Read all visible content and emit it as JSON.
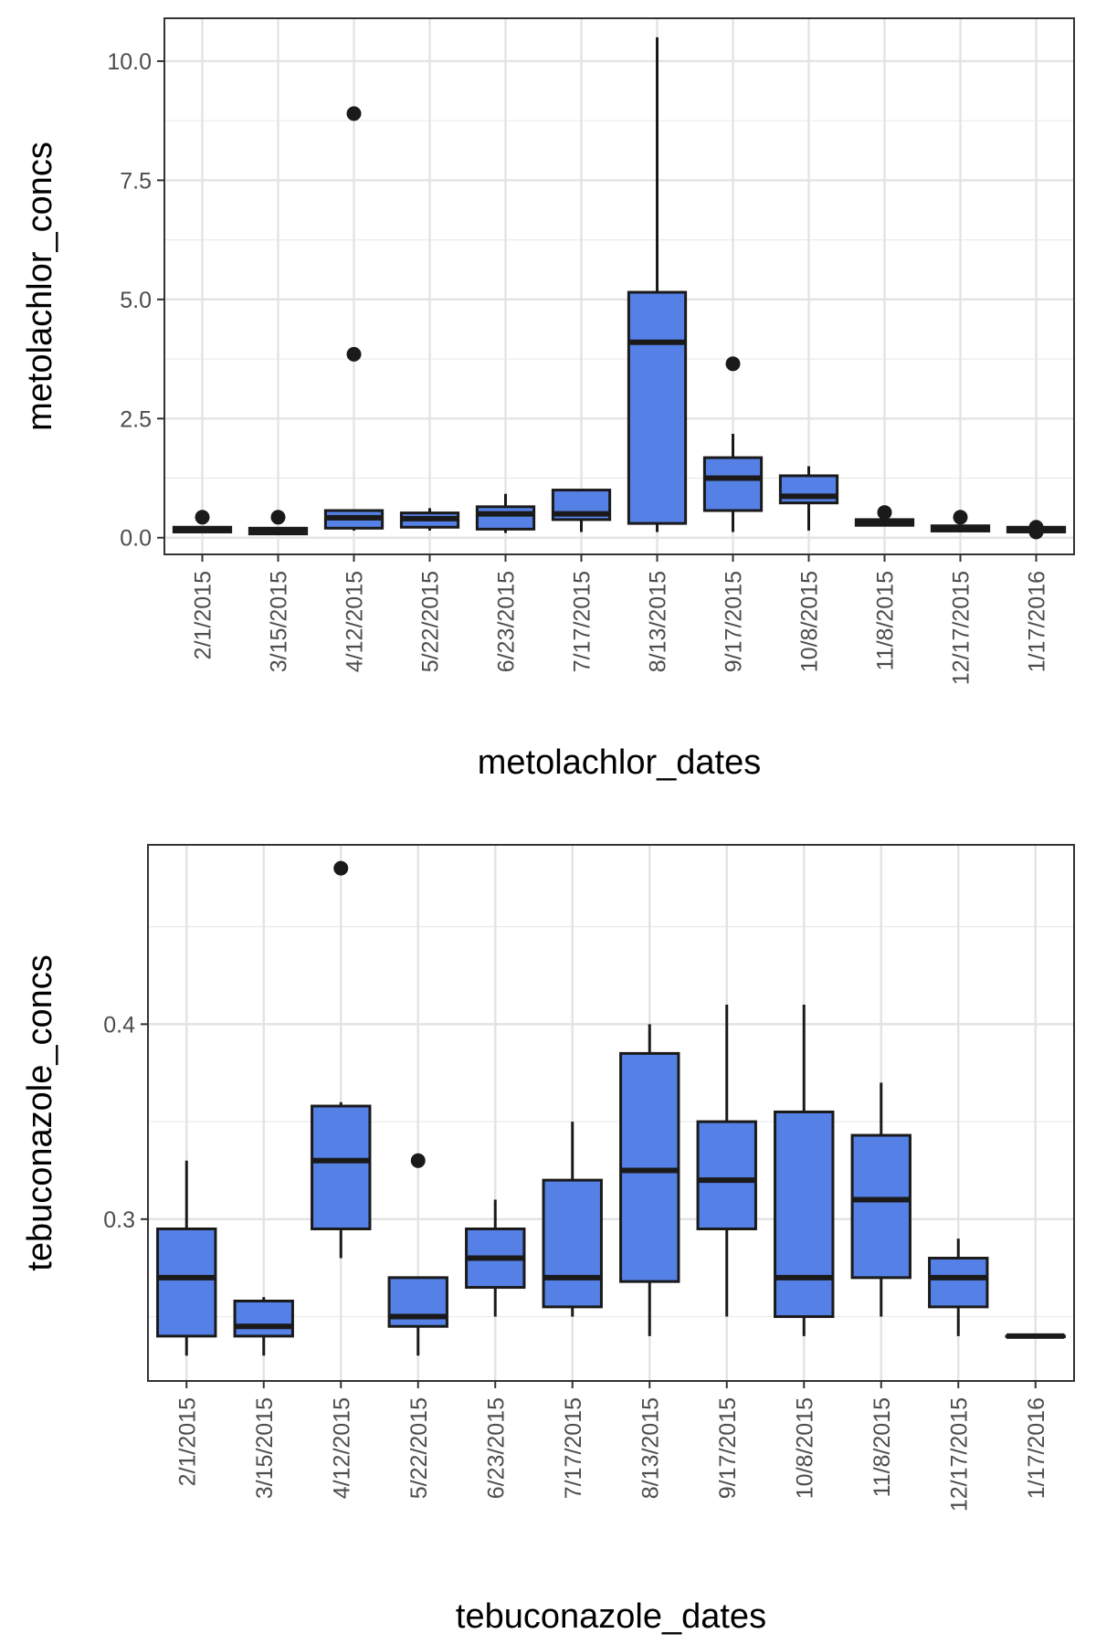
{
  "chart_data": [
    {
      "type": "box",
      "title": "",
      "xlabel": "metolachlor_dates",
      "ylabel": "metolachlor_concs",
      "ylim": [
        -0.35,
        10.9
      ],
      "yticks": [
        0.0,
        2.5,
        5.0,
        7.5,
        10.0
      ],
      "ytick_labels": [
        "0.0",
        "2.5",
        "5.0",
        "7.5",
        "10.0"
      ],
      "grid": true,
      "fill_color": "#5580e6",
      "categories": [
        "2/1/2015",
        "3/15/2015",
        "4/12/2015",
        "5/22/2015",
        "6/23/2015",
        "7/17/2015",
        "8/13/2015",
        "9/17/2015",
        "10/8/2015",
        "11/8/2015",
        "12/17/2015",
        "1/17/2016"
      ],
      "boxes": [
        {
          "whisker_low": 0.12,
          "q1": 0.12,
          "median": 0.17,
          "q3": 0.22,
          "whisker_high": 0.22,
          "outliers": [
            0.43
          ]
        },
        {
          "whisker_low": 0.08,
          "q1": 0.08,
          "median": 0.13,
          "q3": 0.2,
          "whisker_high": 0.2,
          "outliers": [
            0.43
          ]
        },
        {
          "whisker_low": 0.15,
          "q1": 0.2,
          "median": 0.42,
          "q3": 0.57,
          "whisker_high": 0.57,
          "outliers": [
            3.85,
            8.9
          ]
        },
        {
          "whisker_low": 0.15,
          "q1": 0.22,
          "median": 0.4,
          "q3": 0.52,
          "whisker_high": 0.62,
          "outliers": []
        },
        {
          "whisker_low": 0.1,
          "q1": 0.18,
          "median": 0.5,
          "q3": 0.65,
          "whisker_high": 0.92,
          "outliers": []
        },
        {
          "whisker_low": 0.12,
          "q1": 0.38,
          "median": 0.5,
          "q3": 1.0,
          "whisker_high": 1.0,
          "outliers": []
        },
        {
          "whisker_low": 0.12,
          "q1": 0.3,
          "median": 4.1,
          "q3": 5.15,
          "whisker_high": 10.5,
          "outliers": []
        },
        {
          "whisker_low": 0.12,
          "q1": 0.57,
          "median": 1.25,
          "q3": 1.68,
          "whisker_high": 2.18,
          "outliers": [
            3.65
          ]
        },
        {
          "whisker_low": 0.15,
          "q1": 0.73,
          "median": 0.87,
          "q3": 1.3,
          "whisker_high": 1.5,
          "outliers": []
        },
        {
          "whisker_low": 0.26,
          "q1": 0.26,
          "median": 0.33,
          "q3": 0.38,
          "whisker_high": 0.38,
          "outliers": [
            0.53
          ]
        },
        {
          "whisker_low": 0.14,
          "q1": 0.14,
          "median": 0.2,
          "q3": 0.25,
          "whisker_high": 0.25,
          "outliers": [
            0.43
          ]
        },
        {
          "whisker_low": 0.12,
          "q1": 0.12,
          "median": 0.17,
          "q3": 0.22,
          "whisker_high": 0.22,
          "outliers": [
            0.22,
            0.12
          ]
        }
      ]
    },
    {
      "type": "box",
      "title": "",
      "xlabel": "tebuconazole_dates",
      "ylabel": "tebuconazole_concs",
      "ylim": [
        0.217,
        0.492
      ],
      "yticks": [
        0.3,
        0.4
      ],
      "ytick_labels": [
        "0.3",
        "0.4"
      ],
      "grid": true,
      "fill_color": "#5580e6",
      "categories": [
        "2/1/2015",
        "3/15/2015",
        "4/12/2015",
        "5/22/2015",
        "6/23/2015",
        "7/17/2015",
        "8/13/2015",
        "9/17/2015",
        "10/8/2015",
        "11/8/2015",
        "12/17/2015",
        "1/17/2016"
      ],
      "boxes": [
        {
          "whisker_low": 0.23,
          "q1": 0.24,
          "median": 0.27,
          "q3": 0.295,
          "whisker_high": 0.33,
          "outliers": []
        },
        {
          "whisker_low": 0.23,
          "q1": 0.24,
          "median": 0.245,
          "q3": 0.258,
          "whisker_high": 0.26,
          "outliers": []
        },
        {
          "whisker_low": 0.28,
          "q1": 0.295,
          "median": 0.33,
          "q3": 0.358,
          "whisker_high": 0.36,
          "outliers": [
            0.48
          ]
        },
        {
          "whisker_low": 0.23,
          "q1": 0.245,
          "median": 0.25,
          "q3": 0.27,
          "whisker_high": 0.27,
          "outliers": [
            0.33
          ]
        },
        {
          "whisker_low": 0.25,
          "q1": 0.265,
          "median": 0.28,
          "q3": 0.295,
          "whisker_high": 0.31,
          "outliers": []
        },
        {
          "whisker_low": 0.25,
          "q1": 0.255,
          "median": 0.27,
          "q3": 0.32,
          "whisker_high": 0.35,
          "outliers": []
        },
        {
          "whisker_low": 0.24,
          "q1": 0.268,
          "median": 0.325,
          "q3": 0.385,
          "whisker_high": 0.4,
          "outliers": []
        },
        {
          "whisker_low": 0.25,
          "q1": 0.295,
          "median": 0.32,
          "q3": 0.35,
          "whisker_high": 0.41,
          "outliers": []
        },
        {
          "whisker_low": 0.24,
          "q1": 0.25,
          "median": 0.27,
          "q3": 0.355,
          "whisker_high": 0.41,
          "outliers": []
        },
        {
          "whisker_low": 0.25,
          "q1": 0.27,
          "median": 0.31,
          "q3": 0.343,
          "whisker_high": 0.37,
          "outliers": []
        },
        {
          "whisker_low": 0.24,
          "q1": 0.255,
          "median": 0.27,
          "q3": 0.28,
          "whisker_high": 0.29,
          "outliers": []
        },
        {
          "whisker_low": 0.24,
          "q1": 0.24,
          "median": 0.24,
          "q3": 0.24,
          "whisker_high": 0.24,
          "outliers": []
        }
      ]
    }
  ]
}
